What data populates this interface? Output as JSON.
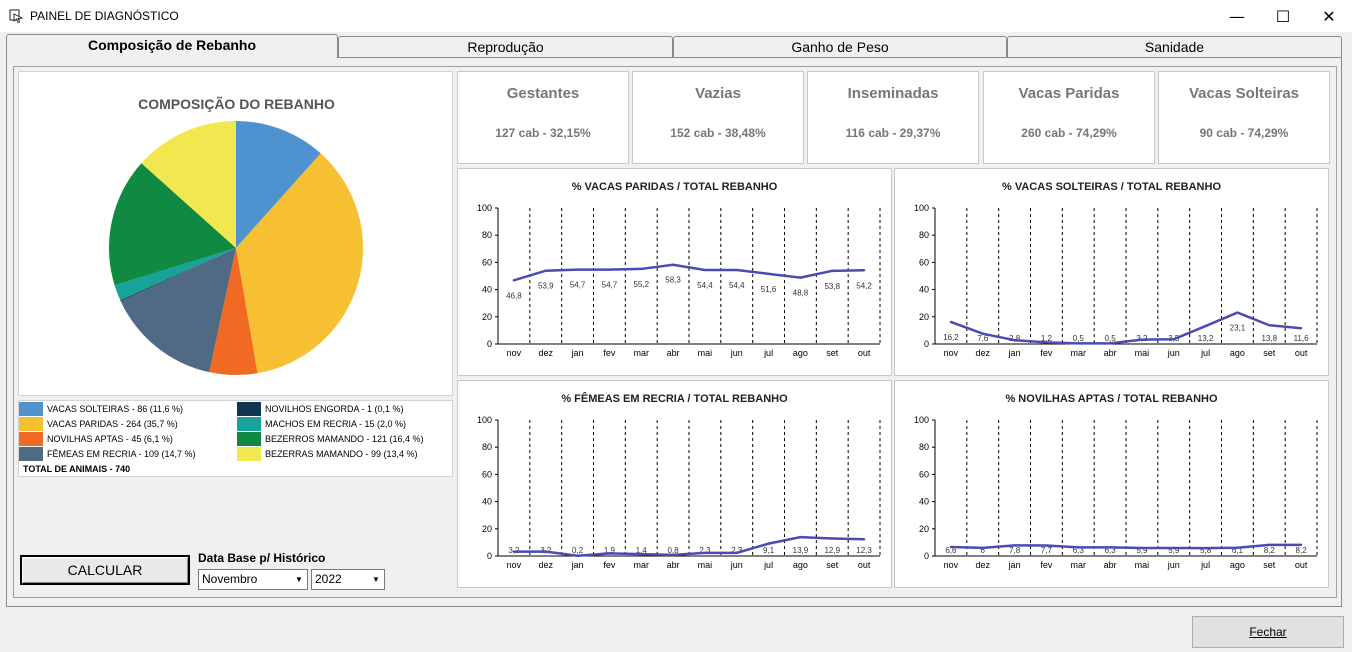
{
  "window": {
    "title": "PAINEL DE DIAGNÓSTICO",
    "minimize": "—",
    "maximize": "☐",
    "close": "✕"
  },
  "tabs": [
    {
      "label": "Composição de Rebanho",
      "active": true
    },
    {
      "label": "Reprodução"
    },
    {
      "label": "Ganho de Peso"
    },
    {
      "label": "Sanidade"
    }
  ],
  "composition": {
    "title": "COMPOSIÇÃO DO REBANHO",
    "slices": [
      {
        "label": "VACAS SOLTEIRAS - 86 (11,6 %)",
        "value": 86,
        "color": "#4e93d0"
      },
      {
        "label": "VACAS PARIDAS - 264 (35,7 %)",
        "value": 264,
        "color": "#f7c033"
      },
      {
        "label": "NOVILHAS APTAS - 45 (6,1 %)",
        "value": 45,
        "color": "#f06a24"
      },
      {
        "label": "FÊMEAS EM RECRIA - 109 (14,7 %)",
        "value": 109,
        "color": "#516a83"
      },
      {
        "label": "NOVILHOS ENGORDA - 1 (0,1 %)",
        "value": 1,
        "color": "#0f3550"
      },
      {
        "label": "MACHOS EM RECRIA - 15 (2,0 %)",
        "value": 15,
        "color": "#17a39a"
      },
      {
        "label": "BEZERROS MAMANDO - 121 (16,4 %)",
        "value": 121,
        "color": "#108a42"
      },
      {
        "label": "BEZERRAS MAMANDO - 99 (13,4 %)",
        "value": 99,
        "color": "#f0e84e"
      }
    ],
    "total": "TOTAL  DE ANIMAIS - 740"
  },
  "controls": {
    "calc_label": "CALCULAR",
    "history_label": "Data Base p/ Histórico",
    "month": "Novembro",
    "year": "2022"
  },
  "kpis": [
    {
      "title": "Gestantes",
      "value": "127 cab - 32,15%"
    },
    {
      "title": "Vazias",
      "value": "152 cab - 38,48%"
    },
    {
      "title": "Inseminadas",
      "value": "116 cab - 29,37%"
    },
    {
      "title": "Vacas Paridas",
      "value": "260 cab - 74,29%"
    },
    {
      "title": "Vacas Solteiras",
      "value": "90 cab - 74,29%"
    }
  ],
  "chart_data": [
    {
      "type": "line",
      "title": "% VACAS PARIDAS / TOTAL REBANHO",
      "categories": [
        "nov",
        "dez",
        "jan",
        "fev",
        "mar",
        "abr",
        "mai",
        "jun",
        "jul",
        "ago",
        "set",
        "out"
      ],
      "values": [
        46.8,
        53.9,
        54.7,
        54.7,
        55.2,
        58.3,
        54.4,
        54.4,
        51.6,
        48.8,
        53.8,
        54.2
      ],
      "labels": [
        "46,8",
        "53,9",
        "54,7",
        "54,7",
        "55,2",
        "58,3",
        "54,4",
        "54,4",
        "51,6",
        "48,8",
        "53,8",
        "54,2"
      ],
      "ylim": [
        0,
        100
      ],
      "yticks": [
        "0",
        "20",
        "40",
        "60",
        "80",
        "100"
      ],
      "grid": "vertical dashed",
      "color": "#4b4bb3"
    },
    {
      "type": "line",
      "title": "% VACAS SOLTEIRAS / TOTAL REBANHO",
      "categories": [
        "nov",
        "dez",
        "jan",
        "fev",
        "mar",
        "abr",
        "mai",
        "jun",
        "jul",
        "ago",
        "set",
        "out"
      ],
      "values": [
        16.2,
        7.6,
        2.8,
        1.2,
        0.5,
        0.5,
        3.2,
        3.5,
        13.2,
        23.1,
        13.8,
        11.6
      ],
      "labels": [
        "16,2",
        "7,6",
        "2,8",
        "1,2",
        "0,5",
        "0,5",
        "3,2",
        "3,5",
        "13,2",
        "23,1",
        "13,8",
        "11,6"
      ],
      "ylim": [
        0,
        100
      ],
      "yticks": [
        "0",
        "20",
        "40",
        "60",
        "80",
        "100"
      ],
      "grid": "vertical dashed",
      "color": "#4b4bb3"
    },
    {
      "type": "line",
      "title": "% FÊMEAS EM RECRIA / TOTAL REBANHO",
      "categories": [
        "nov",
        "dez",
        "jan",
        "fev",
        "mar",
        "abr",
        "mai",
        "jun",
        "jul",
        "ago",
        "set",
        "out"
      ],
      "values": [
        3.2,
        3.2,
        0.2,
        1.9,
        1.4,
        0.8,
        2.3,
        2.3,
        9.1,
        13.9,
        12.9,
        12.3
      ],
      "labels": [
        "3,2",
        "3,2",
        "0,2",
        "1,9",
        "1,4",
        "0,8",
        "2,3",
        "2,3",
        "9,1",
        "13,9",
        "12,9",
        "12,3"
      ],
      "ylim": [
        0,
        100
      ],
      "yticks": [
        "0",
        "20",
        "40",
        "60",
        "80",
        "100"
      ],
      "grid": "vertical dashed",
      "color": "#4b4bb3"
    },
    {
      "type": "line",
      "title": "% NOVILHAS APTAS / TOTAL REBANHO",
      "categories": [
        "nov",
        "dez",
        "jan",
        "fev",
        "mar",
        "abr",
        "mai",
        "jun",
        "jul",
        "ago",
        "set",
        "out"
      ],
      "values": [
        6.6,
        6,
        7.8,
        7.7,
        6.3,
        6.3,
        5.9,
        5.9,
        5.8,
        6.1,
        8.2,
        8.2
      ],
      "labels": [
        "6,6",
        "6",
        "7,8",
        "7,7",
        "6,3",
        "6,3",
        "5,9",
        "5,9",
        "5,8",
        "6,1",
        "8,2",
        "8,2"
      ],
      "ylim": [
        0,
        100
      ],
      "yticks": [
        "0",
        "20",
        "40",
        "60",
        "80",
        "100"
      ],
      "grid": "vertical dashed",
      "color": "#4b4bb3"
    }
  ],
  "footer": {
    "close_label": "Fechar"
  }
}
